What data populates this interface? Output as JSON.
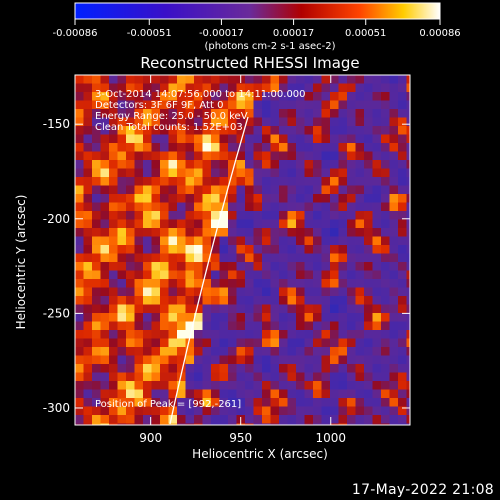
{
  "colorbar": {
    "ticks": [
      "-0.00086",
      "-0.00051",
      "-0.00017",
      "0.00017",
      "0.00051",
      "0.00086"
    ],
    "unit_label": "(photons cm-2 s-1 asec-2)",
    "min": -0.00086,
    "max": 0.00086
  },
  "chart_data": {
    "type": "heatmap",
    "title": "Reconstructed RHESSI Image",
    "xlabel": "Heliocentric X (arcsec)",
    "ylabel": "Heliocentric Y (arcsec)",
    "xlim": [
      858,
      1044
    ],
    "ylim": [
      -309,
      -124
    ],
    "xticks": [
      900,
      950,
      1000
    ],
    "yticks": [
      -150,
      -200,
      -250,
      -300
    ],
    "annotations": [
      "3-Oct-2014 14:07:56.000 to 14:11:00.000",
      "Detectors: 3F 6F 9F, Att 0",
      "Energy Range: 25.0 - 50.0 keV",
      "Clean    Total counts: 1.52E+03"
    ],
    "peak_label": "Position of Peak = [992,-261]",
    "peak": [
      992,
      -261
    ],
    "colormap": "blue-purple-red-yellow-white",
    "limb_arc": "white"
  },
  "footer": {
    "timestamp": "17-May-2022 21:08"
  }
}
